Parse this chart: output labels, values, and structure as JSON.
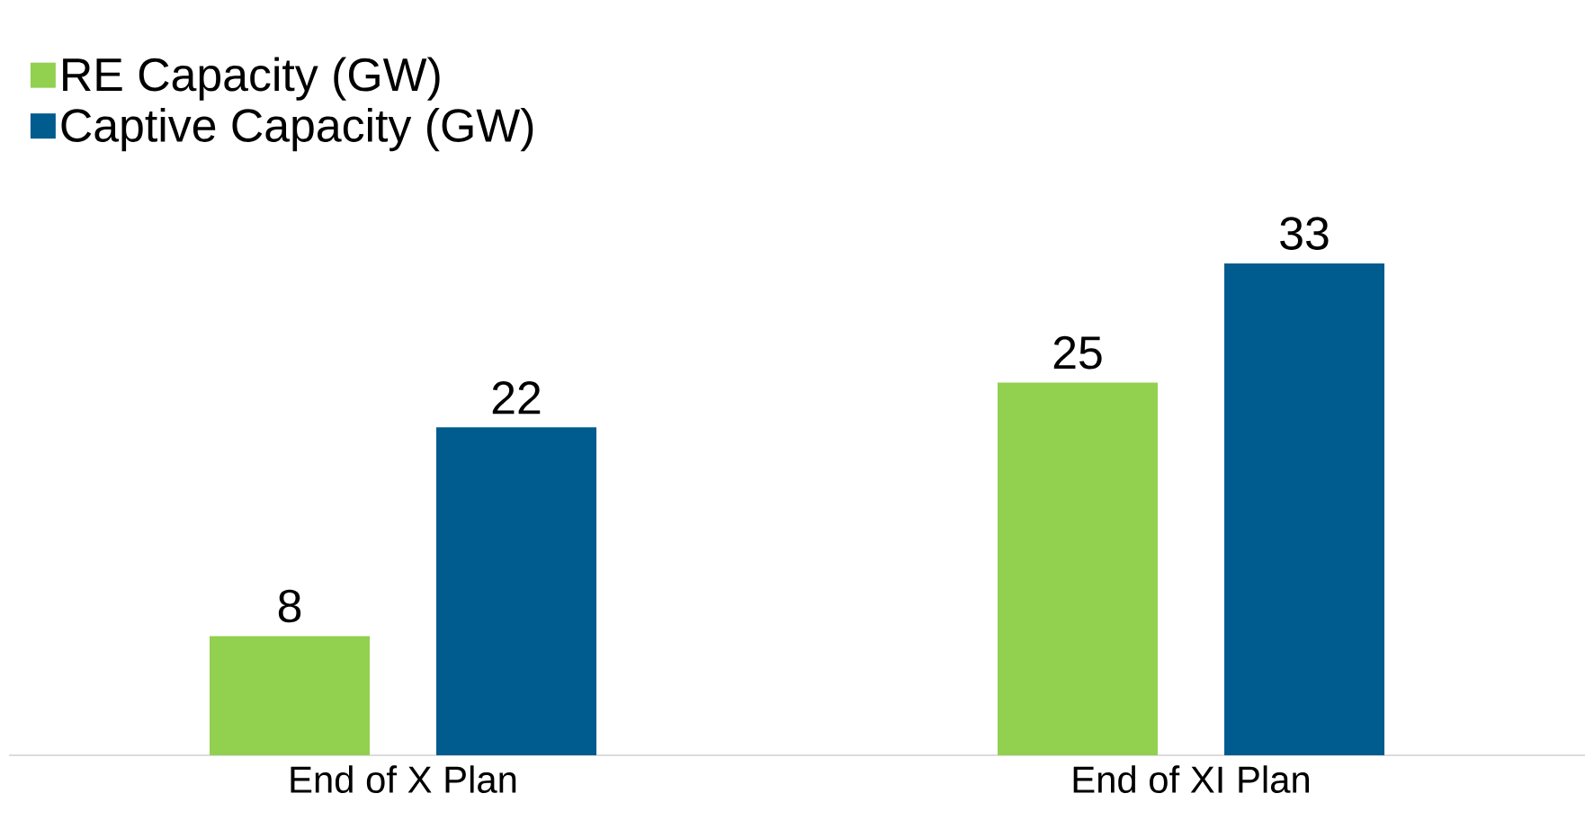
{
  "chart_data": {
    "type": "bar",
    "categories": [
      "End of X Plan",
      "End of XI Plan"
    ],
    "series": [
      {
        "name": "RE Capacity (GW)",
        "color": "#92d050",
        "values": [
          8,
          25
        ]
      },
      {
        "name": "Captive Capacity (GW)",
        "color": "#005b8f",
        "values": [
          22,
          33
        ]
      }
    ],
    "data_labels": true,
    "legend": "top left"
  }
}
